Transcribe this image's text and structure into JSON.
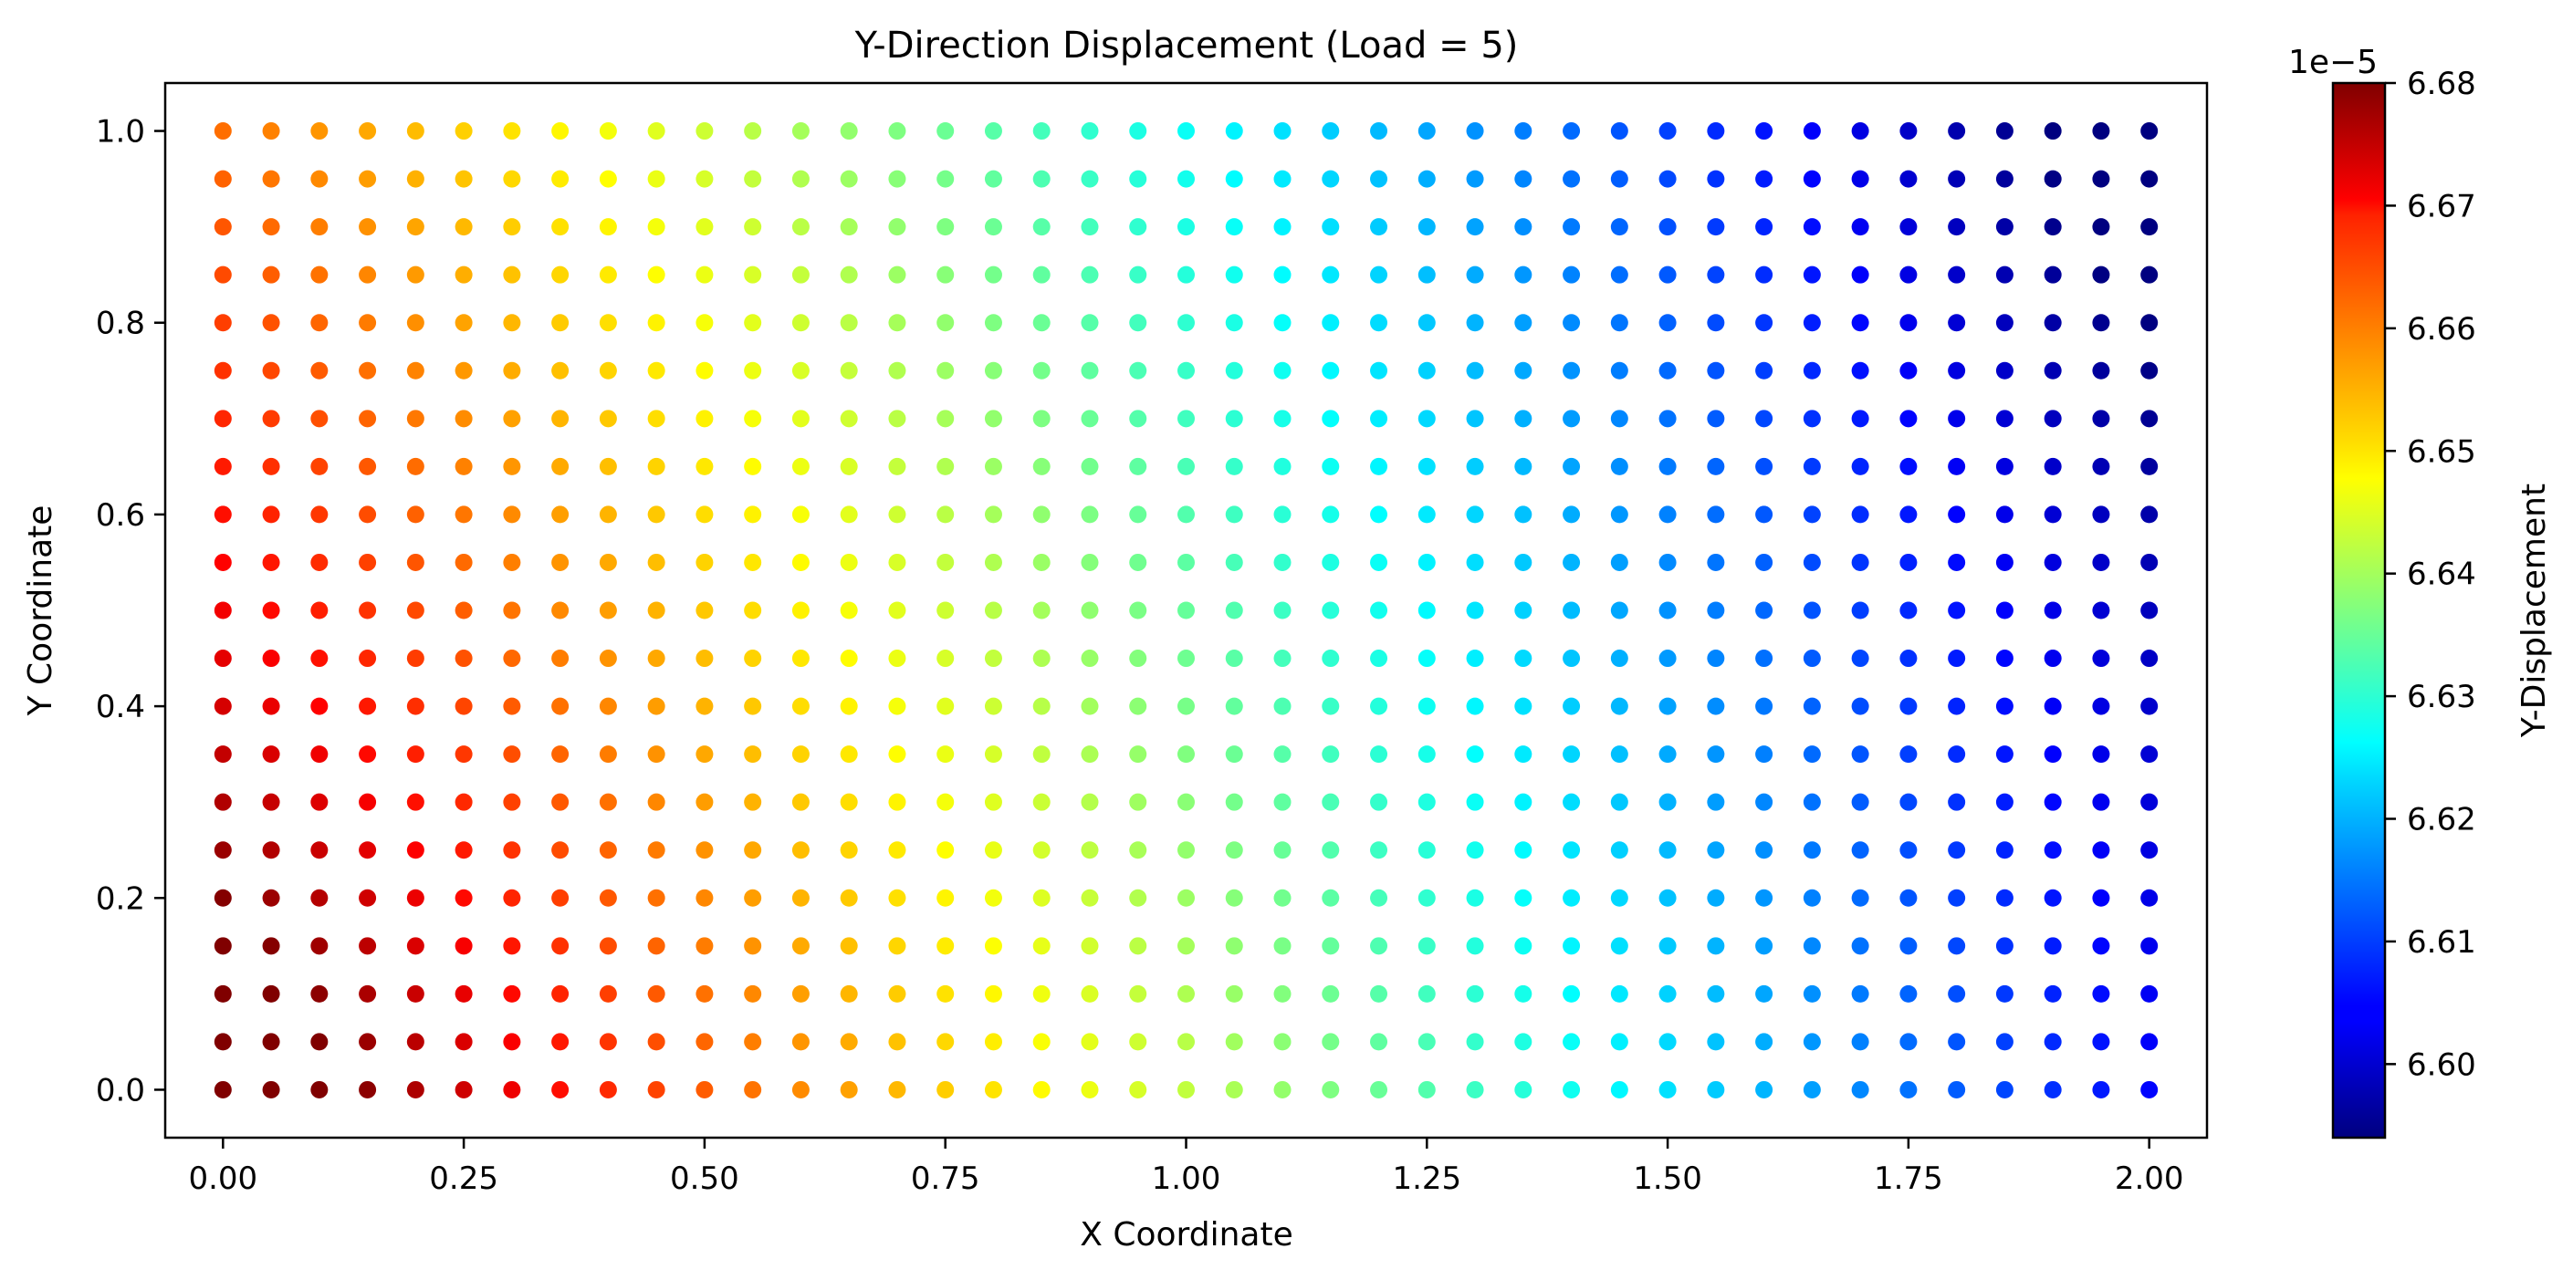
{
  "chart_data": {
    "type": "scatter",
    "title": "Y-Direction Displacement (Load = 5)",
    "xlabel": "X Coordinate",
    "ylabel": "Y Coordinate",
    "xlim": [
      -0.06,
      2.06
    ],
    "ylim": [
      -0.05,
      1.05
    ],
    "x_ticks": [
      "0.00",
      "0.25",
      "0.50",
      "0.75",
      "1.00",
      "1.25",
      "1.50",
      "1.75",
      "2.00"
    ],
    "y_ticks": [
      "0.0",
      "0.2",
      "0.4",
      "0.6",
      "0.8",
      "1.0"
    ],
    "grid": false,
    "colormap": "jet",
    "colorbar": {
      "label": "Y-Displacement",
      "offset_text": "1e−5",
      "range": [
        6.594,
        6.68
      ],
      "ticks": [
        "6.60",
        "6.61",
        "6.62",
        "6.63",
        "6.64",
        "6.65",
        "6.66",
        "6.67",
        "6.68"
      ]
    },
    "field": {
      "description_of_grid": "nodes on a roughly uniform grid over [0,2]x[0,1], about 41 columns by 21 rows",
      "x_range": [
        0,
        2
      ],
      "y_range": [
        0,
        1
      ],
      "columns": 41,
      "rows": 21,
      "value_at_left_bottom": 6.68,
      "value_at_left_top": 6.66,
      "value_at_middle": 6.63,
      "value_at_right_bottom": 6.605,
      "value_at_right_top": 6.594
    }
  }
}
